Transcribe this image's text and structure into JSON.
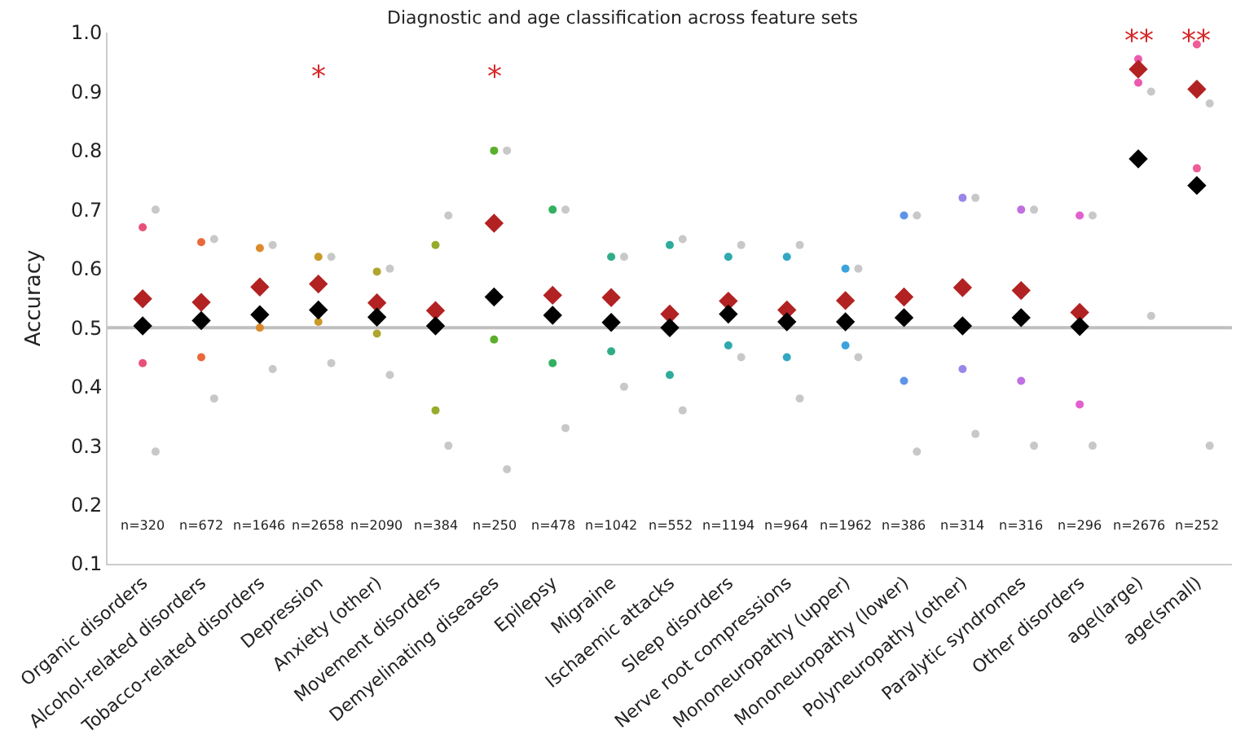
{
  "chart_data": {
    "type": "scatter",
    "title": "Diagnostic and age classification across feature sets",
    "ylabel": "Accuracy",
    "categories": [
      "Organic disorders",
      "Alcohol-related disorders",
      "Tobacco-related disorders",
      "Depression",
      "Anxiety (other)",
      "Movement disorders",
      "Demyelinating diseases",
      "Epilepsy",
      "Migraine",
      "Ischaemic attacks",
      "Sleep disorders",
      "Nerve root compressions",
      "Mononeuropathy (upper)",
      "Mononeuropathy (lower)",
      "Polyneuropathy (other)",
      "Paralytic syndromes",
      "Other disorders",
      "age(large)",
      "age(small)"
    ],
    "ylim": [
      0.1,
      1.0
    ],
    "yticks": [
      0.1,
      0.2,
      0.3,
      0.4,
      0.5,
      0.6,
      0.7,
      0.8,
      0.9,
      {
        "value": 1.0,
        "label": "1.0"
      }
    ],
    "grid": false,
    "series": [
      {
        "marker": "circle",
        "color": "#c8c8c8",
        "x": [
          "Organic disorders",
          "Organic disorders",
          "Alcohol-related disorders",
          "Alcohol-related disorders",
          "Tobacco-related disorders",
          "Tobacco-related disorders",
          "Depression",
          "Depression",
          "Anxiety (other)",
          "Anxiety (other)",
          "Movement disorders",
          "Movement disorders",
          "Demyelinating diseases",
          "Demyelinating diseases",
          "Epilepsy",
          "Epilepsy",
          "Migraine",
          "Migraine",
          "Ischaemic attacks",
          "Ischaemic attacks",
          "Sleep disorders",
          "Sleep disorders",
          "Nerve root compressions",
          "Nerve root compressions",
          "Mononeuropathy (upper)",
          "Mononeuropathy (upper)",
          "Mononeuropathy (lower)",
          "Mononeuropathy (lower)",
          "Polyneuropathy (other)",
          "Polyneuropathy (other)",
          "Paralytic syndromes",
          "Paralytic syndromes",
          "Other disorders",
          "Other disorders",
          "age(large)",
          "age(large)",
          "age(small)",
          "age(small)"
        ],
        "values": [
          0.29,
          0.7,
          0.38,
          0.65,
          0.43,
          0.64,
          0.44,
          0.62,
          0.42,
          0.6,
          0.3,
          0.69,
          0.26,
          0.8,
          0.33,
          0.7,
          0.4,
          0.62,
          0.36,
          0.65,
          0.45,
          0.64,
          0.38,
          0.64,
          0.45,
          0.6,
          0.29,
          0.69,
          0.32,
          0.72,
          0.3,
          0.7,
          0.3,
          0.69,
          0.52,
          0.9,
          0.3,
          0.88
        ]
      },
      {
        "marker": "circle",
        "x": [
          "Organic disorders",
          "Organic disorders",
          "Alcohol-related disorders",
          "Alcohol-related disorders",
          "Tobacco-related disorders",
          "Tobacco-related disorders",
          "Depression",
          "Depression",
          "Anxiety (other)",
          "Anxiety (other)",
          "Movement disorders",
          "Movement disorders",
          "Demyelinating diseases",
          "Demyelinating diseases",
          "Epilepsy",
          "Epilepsy",
          "Migraine",
          "Migraine",
          "Ischaemic attacks",
          "Ischaemic attacks",
          "Sleep disorders",
          "Sleep disorders",
          "Nerve root compressions",
          "Nerve root compressions",
          "Mononeuropathy (upper)",
          "Mononeuropathy (upper)",
          "Mononeuropathy (lower)",
          "Mononeuropathy (lower)",
          "Polyneuropathy (other)",
          "Polyneuropathy (other)",
          "Paralytic syndromes",
          "Paralytic syndromes",
          "Other disorders",
          "Other disorders",
          "age(large)",
          "age(large)",
          "age(small)",
          "age(small)"
        ],
        "values": [
          0.44,
          0.67,
          0.45,
          0.645,
          0.5,
          0.635,
          0.51,
          0.62,
          0.49,
          0.595,
          0.36,
          0.64,
          0.48,
          0.8,
          0.44,
          0.7,
          0.46,
          0.62,
          0.42,
          0.64,
          0.47,
          0.62,
          0.45,
          0.62,
          0.47,
          0.6,
          0.41,
          0.69,
          0.43,
          0.72,
          0.41,
          0.7,
          0.37,
          0.69,
          0.915,
          0.955,
          0.77,
          0.98
        ],
        "colors": [
          "#e8517a",
          "#e8517a",
          "#e8683a",
          "#e8683a",
          "#dd8a2c",
          "#dd8a2c",
          "#c99a2a",
          "#c99a2a",
          "#b0a530",
          "#b0a530",
          "#95ac2c",
          "#95ac2c",
          "#5aaf2c",
          "#5aaf2c",
          "#33b060",
          "#33b060",
          "#30ad88",
          "#30ad88",
          "#2fab9c",
          "#2fab9c",
          "#30a9ae",
          "#30a9ae",
          "#33a7c2",
          "#33a7c2",
          "#3ba3dc",
          "#3ba3dc",
          "#5d94e8",
          "#5d94e8",
          "#9a86e8",
          "#9a86e8",
          "#c070e0",
          "#c070e0",
          "#e25fd0",
          "#e25fd0",
          "#ec5ab0",
          "#ec5ab0",
          "#ee5c95",
          "#ee5c95"
        ]
      },
      {
        "marker": "diamond",
        "color": "#b22222",
        "values": [
          0.549,
          0.543,
          0.569,
          0.574,
          0.542,
          0.529,
          0.677,
          0.555,
          0.551,
          0.523,
          0.545,
          0.53,
          0.546,
          0.552,
          0.568,
          0.563,
          0.526,
          0.938,
          0.904
        ]
      },
      {
        "marker": "diamond",
        "color": "#000000",
        "values": [
          0.503,
          0.512,
          0.522,
          0.53,
          0.518,
          0.503,
          0.552,
          0.521,
          0.509,
          0.5,
          0.523,
          0.51,
          0.51,
          0.517,
          0.503,
          0.517,
          0.502,
          0.786,
          0.741
        ]
      }
    ],
    "ref_lines": [
      {
        "axis": "y",
        "value": 0.5,
        "color": "#bfbfbf"
      }
    ],
    "annotations": [
      "*",
      "*",
      "**",
      "**",
      "n=320",
      "n=672",
      "n=1646",
      "n=2658",
      "n=2090",
      "n=384",
      "n=250",
      "n=478",
      "n=1042",
      "n=552",
      "n=1194",
      "n=964",
      "n=1962",
      "n=386",
      "n=314",
      "n=316",
      "n=296",
      "n=2676",
      "n=252"
    ]
  }
}
